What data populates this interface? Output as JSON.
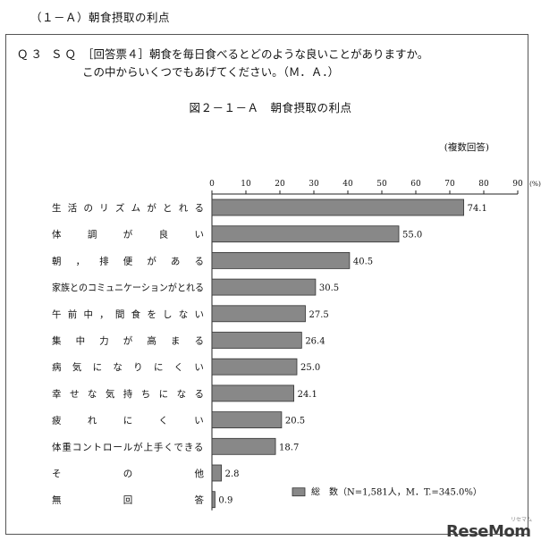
{
  "section_title": "（１－Ａ）朝食摂取の利点",
  "question": {
    "code": "Ｑ３ ＳＱ",
    "line1": "［回答票４］朝食を毎日食べるとどのような良いことがありますか。",
    "line2": "この中からいくつでもあげてください。（Ｍ．Ａ．）"
  },
  "figure_title": "図２－１－Ａ　朝食摂取の利点",
  "note": "(複数回答)",
  "legend_label": "総　数（N=1,581人，M．T.=345.0%）",
  "bar_color": "#888888",
  "logo": {
    "text": "ReseMom",
    "sub": "リセマム"
  },
  "chart_data": {
    "type": "bar",
    "orientation": "horizontal",
    "title": "",
    "xlabel": "",
    "unit": "(%)",
    "xlim": [
      0,
      90
    ],
    "x_ticks": [
      "0",
      "10",
      "20",
      "30",
      "40",
      "50",
      "60",
      "70",
      "80",
      "90"
    ],
    "categories": [
      "生活のリズムがとれる",
      "体調が良い",
      "朝，排便がある",
      "家族とのコミュニケーションがとれる",
      "午前中，間食をしない",
      "集中力が高まる",
      "病気になりにくい",
      "幸せな気持ちになる",
      "疲れにくい",
      "体重コントロールが上手くできる",
      "その他",
      "無回答"
    ],
    "values": [
      74.1,
      55.0,
      40.5,
      30.5,
      27.5,
      26.4,
      25.0,
      24.1,
      20.5,
      18.7,
      2.8,
      0.9
    ],
    "value_labels": [
      "74.1",
      "55.0",
      "40.5",
      "30.5",
      "27.5",
      "26.4",
      "25.0",
      "24.1",
      "20.5",
      "18.7",
      "2.8",
      "0.9"
    ],
    "series": [
      {
        "name": "総　数（N=1,581人，M．T.=345.0%）",
        "values": [
          74.1,
          55.0,
          40.5,
          30.5,
          27.5,
          26.4,
          25.0,
          24.1,
          20.5,
          18.7,
          2.8,
          0.9
        ]
      }
    ]
  }
}
